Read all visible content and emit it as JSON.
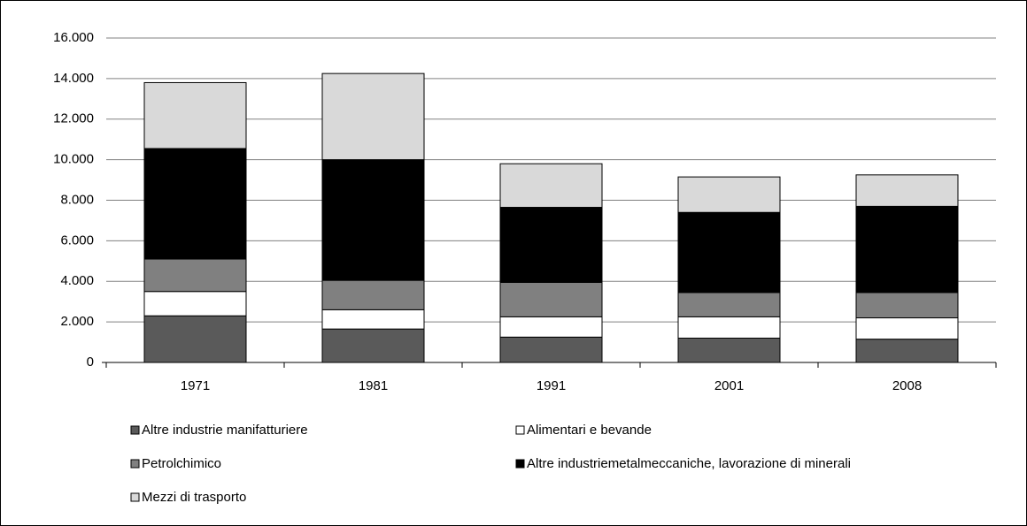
{
  "chart_data": {
    "type": "stacked_bar",
    "categories": [
      "1971",
      "1981",
      "1991",
      "2001",
      "2008"
    ],
    "series": [
      {
        "name": "Altre industrie manifatturiere",
        "color": "#5a5a5a",
        "values": [
          2300,
          1650,
          1250,
          1200,
          1150
        ]
      },
      {
        "name": "Alimentari e bevande",
        "color": "#ffffff",
        "values": [
          1200,
          950,
          1000,
          1050,
          1050
        ]
      },
      {
        "name": "Petrolchimico",
        "color": "#808080",
        "values": [
          1600,
          1450,
          1700,
          1200,
          1250
        ]
      },
      {
        "name": "Altre industriemetalmeccaniche, lavorazione di minerali",
        "color": "#000000",
        "values": [
          5450,
          5950,
          3700,
          3950,
          4250
        ]
      },
      {
        "name": "Mezzi di trasporto",
        "color": "#d9d9d9",
        "values": [
          3250,
          4250,
          2150,
          1750,
          1550
        ]
      }
    ],
    "ylim": [
      0,
      16000
    ],
    "yticks": [
      0,
      {
        "value": 2000,
        "label": "2.000"
      },
      {
        "value": 4000,
        "label": "4.000"
      },
      {
        "value": 6000,
        "label": "6.000"
      },
      {
        "value": 8000,
        "label": "8.000"
      },
      {
        "value": 10000,
        "label": "10.000"
      },
      {
        "value": 12000,
        "label": "12.000"
      },
      {
        "value": 14000,
        "label": "14.000"
      },
      {
        "value": 16000,
        "label": "16.000"
      }
    ],
    "grid": true,
    "legend": "bottom"
  }
}
